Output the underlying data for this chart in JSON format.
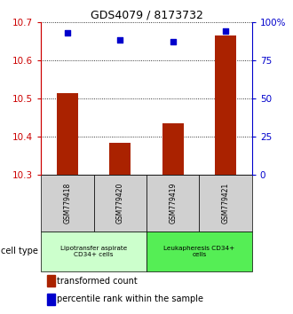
{
  "title": "GDS4079 / 8173732",
  "samples": [
    "GSM779418",
    "GSM779420",
    "GSM779419",
    "GSM779421"
  ],
  "bar_values": [
    10.515,
    10.385,
    10.435,
    10.665
  ],
  "scatter_values": [
    93,
    88,
    87,
    94
  ],
  "ylim_left": [
    10.3,
    10.7
  ],
  "ylim_right": [
    0,
    100
  ],
  "yticks_left": [
    10.3,
    10.4,
    10.5,
    10.6,
    10.7
  ],
  "yticks_right": [
    0,
    25,
    50,
    75,
    100
  ],
  "bar_color": "#aa2200",
  "scatter_color": "#0000cc",
  "cell_types": [
    {
      "label": "Lipotransfer aspirate\nCD34+ cells",
      "span": [
        0,
        2
      ],
      "color": "#ccffcc"
    },
    {
      "label": "Leukapheresis CD34+\ncells",
      "span": [
        2,
        4
      ],
      "color": "#55ee55"
    }
  ],
  "cell_type_label": "cell type",
  "legend_bar_label": "transformed count",
  "legend_scatter_label": "percentile rank within the sample",
  "left_axis_color": "#cc0000",
  "right_axis_color": "#0000cc",
  "sample_box_color": "#d0d0d0",
  "bar_width": 0.4
}
